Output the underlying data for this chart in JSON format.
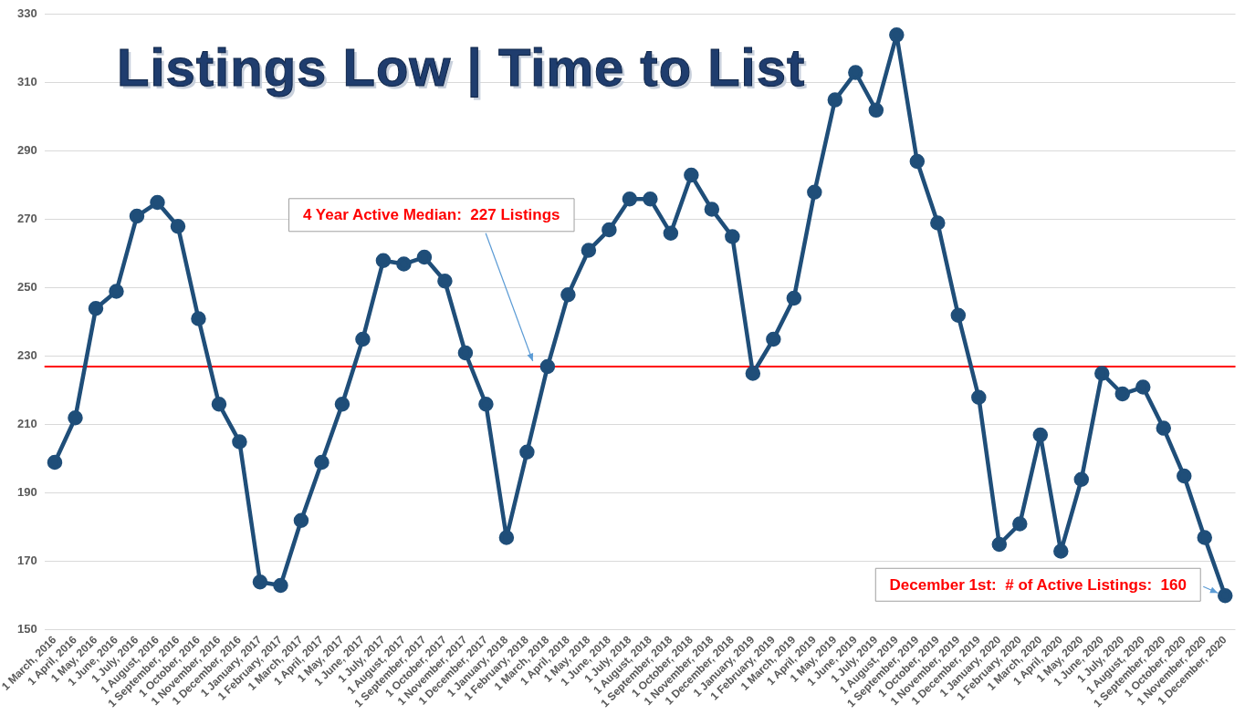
{
  "chart_data": {
    "type": "line",
    "title": "Listings Low | Time to List",
    "categories": [
      "1 March, 2016",
      "1 April, 2016",
      "1 May, 2016",
      "1 June, 2016",
      "1 July, 2016",
      "1 August, 2016",
      "1 September, 2016",
      "1 October, 2016",
      "1 November, 2016",
      "1 December, 2016",
      "1 January, 2017",
      "1 February, 2017",
      "1 March, 2017",
      "1 April, 2017",
      "1 May, 2017",
      "1 June, 2017",
      "1 July, 2017",
      "1 August, 2017",
      "1 September, 2017",
      "1 October, 2017",
      "1 November, 2017",
      "1 December, 2017",
      "1 January, 2018",
      "1 February, 2018",
      "1 March, 2018",
      "1 April, 2018",
      "1 May, 2018",
      "1 June, 2018",
      "1 July, 2018",
      "1 August, 2018",
      "1 September, 2018",
      "1 October, 2018",
      "1 November, 2018",
      "1 December, 2018",
      "1 January, 2019",
      "1 February, 2019",
      "1 March, 2019",
      "1 April, 2019",
      "1 May, 2019",
      "1 June, 2019",
      "1 July, 2019",
      "1 August, 2019",
      "1 September, 2019",
      "1 October, 2019",
      "1 November, 2019",
      "1 December, 2019",
      "1 January, 2020",
      "1 February, 2020",
      "1 March, 2020",
      "1 April, 2020",
      "1 May, 2020",
      "1 June, 2020",
      "1 July, 2020",
      "1 August, 2020",
      "1 September, 2020",
      "1 October, 2020",
      "1 November, 2020",
      "1 December, 2020"
    ],
    "series": [
      {
        "color": "#1f4e79",
        "values": [
          199,
          212,
          244,
          249,
          271,
          275,
          268,
          241,
          216,
          205,
          164,
          163,
          182,
          199,
          216,
          235,
          258,
          257,
          259,
          252,
          231,
          216,
          177,
          202,
          227,
          248,
          261,
          267,
          276,
          276,
          266,
          283,
          273,
          265,
          225,
          235,
          247,
          278,
          305,
          313,
          302,
          324,
          287,
          269,
          242,
          218,
          175,
          181,
          207,
          173,
          194,
          225,
          219,
          221,
          209,
          195,
          177,
          160
        ]
      }
    ],
    "ylim": [
      150,
      330
    ],
    "yticks": [
      150,
      170,
      190,
      210,
      230,
      250,
      270,
      290,
      310,
      330
    ],
    "grid": "y",
    "legend": false,
    "marker": "circle",
    "line_style": "solid",
    "ref_lines": [
      {
        "axis": "y",
        "value": 227,
        "label": "4 Year Active Median:  227 Listings",
        "color": "#ff0000"
      }
    ],
    "annotations": [
      {
        "text": "December 1st:  # of Active Listings:  160",
        "x": "1 December, 2020",
        "y": 160
      }
    ]
  }
}
